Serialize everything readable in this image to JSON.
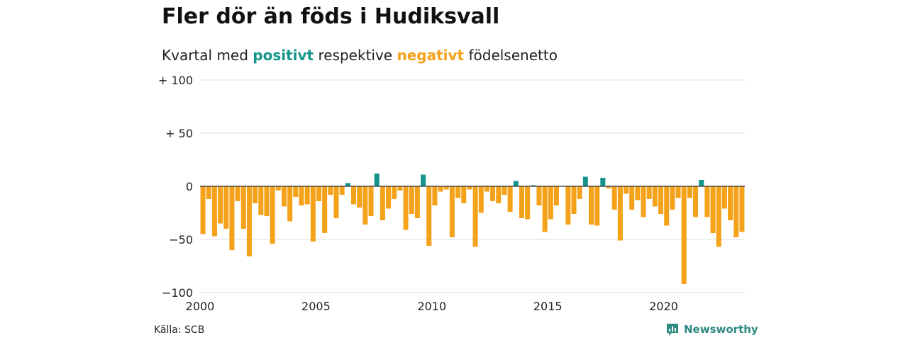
{
  "chart_data": {
    "type": "bar",
    "title": "Fler dör än föds i Hudiksvall",
    "subtitle": {
      "prefix": "Kvartal med ",
      "positive_word": "positivt",
      "middle": " respektive ",
      "negative_word": "negativt",
      "suffix": " födelsenetto"
    },
    "source": "Källa: SCB",
    "xlabel": "",
    "ylabel": "",
    "ylim": [
      -100,
      100
    ],
    "yticks": [
      {
        "value": 100,
        "label": "+ 100"
      },
      {
        "value": 50,
        "label": "+  50"
      },
      {
        "value": 0,
        "label": "0"
      },
      {
        "value": -50,
        "label": "−50"
      },
      {
        "value": -100,
        "label": "−100"
      }
    ],
    "x_start": "2000 Q1",
    "x_ticks": [
      "2000",
      "2005",
      "2010",
      "2015",
      "2020"
    ],
    "colors": {
      "positive": "#14958a",
      "negative": "#f5a21b",
      "zero_line": "#333333",
      "grid": "#dddddd"
    },
    "grid": true,
    "values": [
      -45,
      -12,
      -47,
      -35,
      -40,
      -60,
      -14,
      -40,
      -66,
      -16,
      -27,
      -28,
      -54,
      -4,
      -19,
      -33,
      -10,
      -18,
      -17,
      -52,
      -14,
      -44,
      -8,
      -30,
      -8,
      3,
      -17,
      -20,
      -36,
      -28,
      12,
      -32,
      -21,
      -12,
      -4,
      -41,
      -26,
      -30,
      11,
      -56,
      -18,
      -5,
      -3,
      -48,
      -11,
      -16,
      -3,
      -57,
      -25,
      -5,
      -14,
      -16,
      -8,
      -24,
      5,
      -30,
      -31,
      1,
      -18,
      -43,
      -31,
      -18,
      0,
      -36,
      -26,
      -12,
      9,
      -36,
      -37,
      8,
      -2,
      -22,
      -51,
      -7,
      -22,
      -13,
      -29,
      -12,
      -19,
      -26,
      -37,
      -22,
      -11,
      -92,
      -11,
      -29,
      6,
      -29,
      -44,
      -57,
      -21,
      -32,
      -48,
      -43
    ]
  },
  "branding": {
    "logo_text": "Newsworthy"
  }
}
